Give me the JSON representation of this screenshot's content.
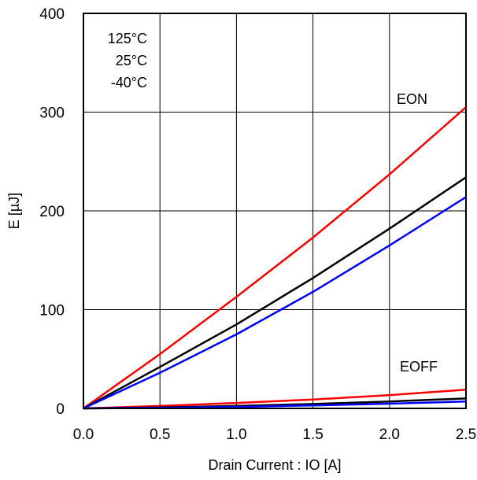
{
  "chart_data": {
    "type": "line",
    "title": "",
    "xlabel": "Drain Current : IO [A]",
    "ylabel": "E [µJ]",
    "xlim": [
      0.0,
      2.5
    ],
    "ylim": [
      0,
      400
    ],
    "x_ticks": [
      "0.0",
      "0.5",
      "1.0",
      "1.5",
      "2.0",
      "2.5"
    ],
    "y_ticks": [
      "0",
      "100",
      "200",
      "300",
      "400"
    ],
    "grid": true,
    "legend": {
      "placement": "top-left",
      "entries": [
        "125°C",
        "25°C",
        "-40°C"
      ]
    },
    "annotations": [
      "EON",
      "EOFF"
    ],
    "colors": {
      "125C": "#ff0000",
      "25C": "#000000",
      "-40C": "#0000ff"
    },
    "series": [
      {
        "group": "EON",
        "temp": "125°C",
        "color": "#ff0000",
        "x": [
          0.0,
          0.5,
          1.0,
          1.5,
          2.0,
          2.5
        ],
        "y": [
          0,
          55,
          113,
          173,
          237,
          305
        ]
      },
      {
        "group": "EON",
        "temp": "25°C",
        "color": "#000000",
        "x": [
          0.0,
          0.5,
          1.0,
          1.5,
          2.0,
          2.5
        ],
        "y": [
          0,
          42,
          85,
          132,
          182,
          234
        ]
      },
      {
        "group": "EON",
        "temp": "-40°C",
        "color": "#0000ff",
        "x": [
          0.0,
          0.5,
          1.0,
          1.5,
          2.0,
          2.5
        ],
        "y": [
          0,
          36,
          75,
          118,
          165,
          214
        ]
      },
      {
        "group": "EOFF",
        "temp": "125°C",
        "color": "#ff0000",
        "x": [
          0.0,
          0.5,
          1.0,
          1.5,
          2.0,
          2.5
        ],
        "y": [
          0,
          2.5,
          5.5,
          9,
          13.5,
          19
        ]
      },
      {
        "group": "EOFF",
        "temp": "25°C",
        "color": "#000000",
        "x": [
          0.0,
          0.5,
          1.0,
          1.5,
          2.0,
          2.5
        ],
        "y": [
          0,
          1,
          2.5,
          4.5,
          7,
          10
        ]
      },
      {
        "group": "EOFF",
        "temp": "-40°C",
        "color": "#0000ff",
        "x": [
          0.0,
          0.5,
          1.0,
          1.5,
          2.0,
          2.5
        ],
        "y": [
          0,
          0.6,
          1.5,
          3,
          4.8,
          7
        ]
      }
    ]
  }
}
